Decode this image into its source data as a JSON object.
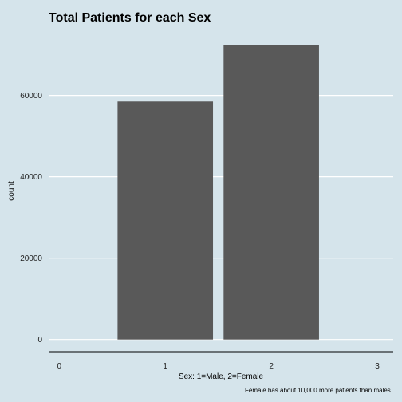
{
  "chart_data": {
    "type": "bar",
    "title": "Total Patients for each Sex",
    "xlabel": "Sex: 1=Male, 2=Female",
    "ylabel": "count",
    "caption": "Female has about 10,000 more patients than males.",
    "x": [
      1,
      2
    ],
    "values": [
      58500,
      72400
    ],
    "xlim": [
      -0.1,
      3.15
    ],
    "ylim": [
      -3000,
      76000
    ],
    "x_ticks": [
      0,
      1,
      2,
      3
    ],
    "y_ticks": [
      0,
      20000,
      40000,
      60000
    ],
    "grid": "horizontal major lines only",
    "bar_color": "#595959",
    "background": "#d5e4eb",
    "gridline_color": "#ffffff",
    "axis_line_color": "#000000"
  }
}
